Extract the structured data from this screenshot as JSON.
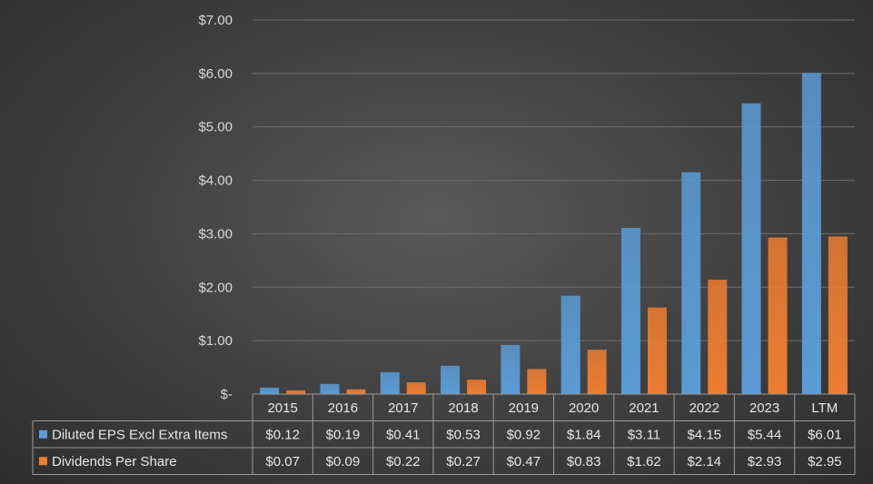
{
  "chart_data": {
    "type": "bar",
    "categories": [
      "2015",
      "2016",
      "2017",
      "2018",
      "2019",
      "2020",
      "2021",
      "2022",
      "2023",
      "LTM"
    ],
    "series": [
      {
        "name": "Diluted EPS Excl Extra Items",
        "values": [
          0.12,
          0.19,
          0.41,
          0.53,
          0.92,
          1.84,
          3.11,
          4.15,
          5.44,
          6.01
        ],
        "value_labels": [
          "$0.12",
          "$0.19",
          "$0.41",
          "$0.53",
          "$0.92",
          "$1.84",
          "$3.11",
          "$4.15",
          "$5.44",
          "$6.01"
        ],
        "color": "#5b9bd5"
      },
      {
        "name": "Dividends Per Share",
        "values": [
          0.07,
          0.09,
          0.22,
          0.27,
          0.47,
          0.83,
          1.62,
          2.14,
          2.93,
          2.95
        ],
        "value_labels": [
          "$0.07",
          "$0.09",
          "$0.22",
          "$0.27",
          "$0.47",
          "$0.83",
          "$1.62",
          "$2.14",
          "$2.93",
          "$2.95"
        ],
        "color": "#ed7d31"
      }
    ],
    "y_ticks": [
      {
        "value": 0,
        "label": "$-"
      },
      {
        "value": 1,
        "label": "$1.00"
      },
      {
        "value": 2,
        "label": "$2.00"
      },
      {
        "value": 3,
        "label": "$3.00"
      },
      {
        "value": 4,
        "label": "$4.00"
      },
      {
        "value": 5,
        "label": "$5.00"
      },
      {
        "value": 6,
        "label": "$6.00"
      },
      {
        "value": 7,
        "label": "$7.00"
      }
    ],
    "ylim": [
      0,
      7
    ],
    "grid": true,
    "legend": "data-table",
    "title": "",
    "xlabel": "",
    "ylabel": ""
  }
}
